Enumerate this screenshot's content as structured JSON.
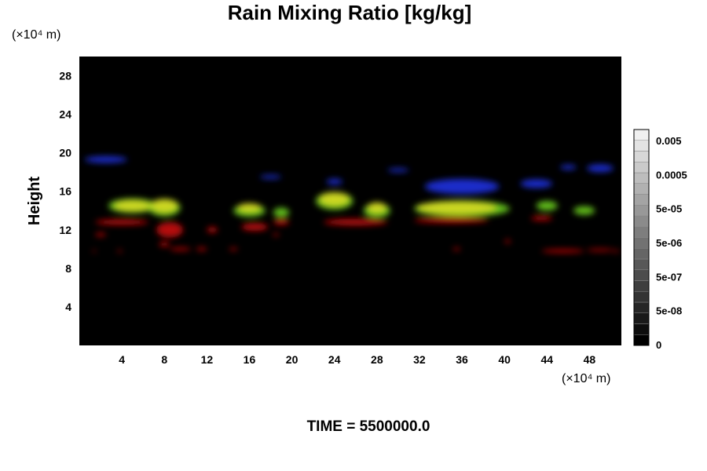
{
  "chart_data": {
    "type": "heatmap",
    "title": "Rain Mixing Ratio [kg/kg]",
    "xlabel": "",
    "ylabel": "Height",
    "x_unit": "(×10⁴ m)",
    "y_unit": "(×10⁴ m)",
    "xlim": [
      0,
      51
    ],
    "ylim": [
      0,
      30
    ],
    "x_ticks": [
      4,
      8,
      12,
      16,
      20,
      24,
      28,
      32,
      36,
      40,
      44,
      48
    ],
    "y_ticks": [
      4,
      8,
      12,
      16,
      20,
      24,
      28
    ],
    "background": "#000000",
    "colorbar": {
      "tick_labels": [
        "0.005",
        "0.0005",
        "5e-05",
        "5e-06",
        "5e-07",
        "5e-08",
        "0"
      ],
      "levels": 20,
      "colors": [
        "#000000",
        "#f0f0f0"
      ]
    },
    "layers": [
      {
        "color": "#2030e0",
        "blobs": [
          [
            2.5,
            19.3,
            4,
            0.7
          ],
          [
            36,
            16.5,
            7,
            1.6
          ],
          [
            43,
            16.8,
            3,
            0.9
          ],
          [
            49,
            18.4,
            2.5,
            0.8
          ],
          [
            24,
            17,
            1.5,
            0.6
          ],
          [
            30,
            18.2,
            2,
            0.4
          ],
          [
            18,
            17.5,
            2,
            0.4
          ],
          [
            46,
            18.5,
            1.5,
            0.5
          ]
        ]
      },
      {
        "color": "#6bd020",
        "blobs": [
          [
            5,
            14.5,
            4.5,
            1.5
          ],
          [
            8,
            14.3,
            3,
            1.8
          ],
          [
            16,
            14,
            3,
            1.3
          ],
          [
            19,
            13.8,
            1.5,
            1
          ],
          [
            24,
            15,
            3.5,
            1.8
          ],
          [
            28,
            14,
            2.5,
            1.5
          ],
          [
            36,
            14.2,
            9,
            1.7
          ],
          [
            44,
            14.5,
            2,
            1
          ],
          [
            47.5,
            14,
            2,
            0.9
          ]
        ]
      },
      {
        "color": "#d8d820",
        "blobs": [
          [
            5,
            14.5,
            3.5,
            1.1
          ],
          [
            8,
            14.5,
            2.5,
            1.4
          ],
          [
            16,
            14.3,
            2.2,
            0.9
          ],
          [
            24,
            15.2,
            2.8,
            1.4
          ],
          [
            28,
            14.3,
            1.8,
            1.1
          ],
          [
            35.5,
            14.3,
            7.5,
            1.3
          ]
        ]
      },
      {
        "color": "#c81010",
        "blobs": [
          [
            4,
            12.8,
            5,
            0.6
          ],
          [
            8.5,
            12,
            2.5,
            1.6
          ],
          [
            16.5,
            12.3,
            2.5,
            0.8
          ],
          [
            19,
            12.8,
            1.5,
            0.6
          ],
          [
            12.5,
            12,
            1,
            0.6
          ],
          [
            26,
            12.8,
            6,
            0.7
          ],
          [
            35,
            13,
            7,
            0.6
          ],
          [
            43.5,
            13.2,
            2,
            0.5
          ],
          [
            2,
            11.5,
            1,
            0.4
          ],
          [
            8,
            10.5,
            1,
            0.5
          ],
          [
            9.5,
            10,
            2,
            0.35
          ],
          [
            11.5,
            10,
            1,
            0.35
          ],
          [
            14.5,
            10,
            0.8,
            0.3
          ],
          [
            18.5,
            11.5,
            0.6,
            0.3
          ],
          [
            3.8,
            9.8,
            0.4,
            0.3
          ],
          [
            1.4,
            9.8,
            0.3,
            0.25
          ],
          [
            35.5,
            10,
            0.7,
            0.3
          ],
          [
            40.3,
            10.8,
            0.5,
            0.4
          ],
          [
            45.5,
            9.8,
            4,
            0.4
          ],
          [
            49,
            9.9,
            2.5,
            0.3
          ],
          [
            50.5,
            9.8,
            0.6,
            0.25
          ]
        ]
      }
    ]
  },
  "footer": {
    "time_text": "TIME = 5500000.0"
  }
}
